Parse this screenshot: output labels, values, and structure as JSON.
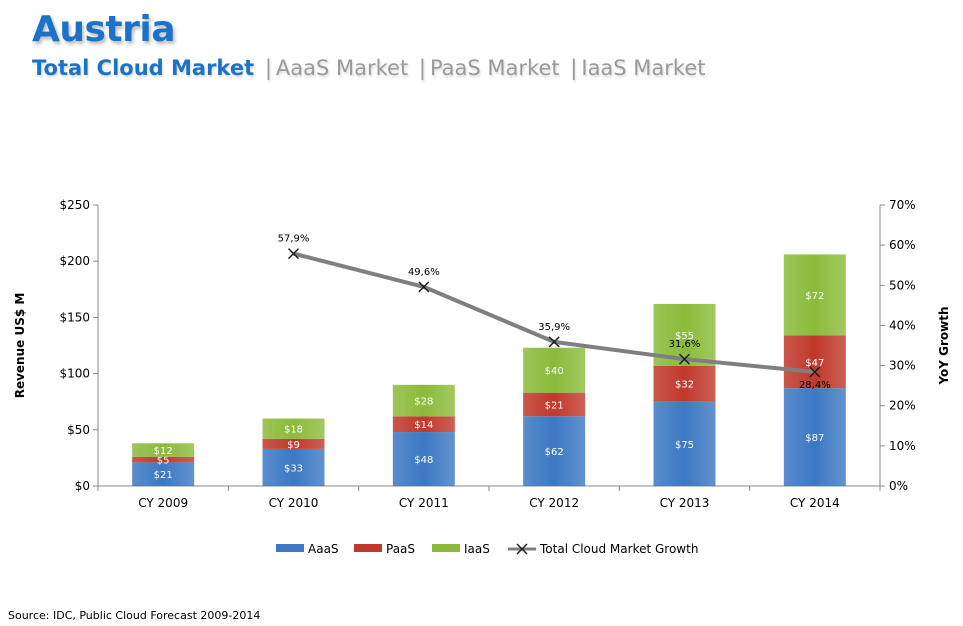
{
  "header": {
    "country": "Austria",
    "tabs": [
      {
        "label": "Total Cloud Market",
        "active": true
      },
      {
        "label": "AaaS Market",
        "active": false
      },
      {
        "label": "PaaS Market",
        "active": false
      },
      {
        "label": "IaaS Market",
        "active": false
      }
    ],
    "separator": "|"
  },
  "source": "Source: IDC, Public Cloud Forecast 2009-2014",
  "colors": {
    "aaas": "#3c78c3",
    "paas": "#c0392b",
    "iaas": "#8bbb3a",
    "growth_line": "#7f7f7f",
    "growth_marker": "#1a1a1a",
    "accent": "#1a72c9"
  },
  "chart_data": {
    "type": "bar",
    "stacked": true,
    "categories": [
      "CY 2009",
      "CY 2010",
      "CY 2011",
      "CY 2012",
      "CY 2013",
      "CY 2014"
    ],
    "series": [
      {
        "name": "AaaS",
        "values": [
          21,
          33,
          48,
          62,
          75,
          87
        ],
        "labels": [
          "$21",
          "$33",
          "$48",
          "$62",
          "$75",
          "$87"
        ]
      },
      {
        "name": "PaaS",
        "values": [
          5,
          9,
          14,
          21,
          32,
          47
        ],
        "labels": [
          "$5",
          "$9",
          "$14",
          "$21",
          "$32",
          "$47"
        ]
      },
      {
        "name": "IaaS",
        "values": [
          12,
          18,
          28,
          40,
          55,
          72
        ],
        "labels": [
          "$12",
          "$18",
          "$28",
          "$40",
          "$55",
          "$72"
        ]
      }
    ],
    "growth": {
      "name": "Total Cloud Market Growth",
      "type": "line",
      "axis": "right",
      "values": [
        null,
        57.9,
        49.6,
        35.9,
        31.6,
        28.4
      ],
      "labels": [
        "",
        "57,9%",
        "49,6%",
        "35,9%",
        "31,6%",
        "28,4%"
      ]
    },
    "ylabel": "Revenue US$ M",
    "ylabel_right": "YoY Growth",
    "ylim": [
      0,
      250
    ],
    "yticks": [
      0,
      50,
      100,
      150,
      200,
      250
    ],
    "ytick_labels": [
      "$0",
      "$50",
      "$100",
      "$150",
      "$200",
      "$250"
    ],
    "ylim_right": [
      0,
      70
    ],
    "yticks_right": [
      0,
      10,
      20,
      30,
      40,
      50,
      60,
      70
    ],
    "ytick_labels_right": [
      "0%",
      "10%",
      "20%",
      "30%",
      "40%",
      "50%",
      "60%",
      "70%"
    ],
    "legend_position": "bottom",
    "grid": false
  }
}
